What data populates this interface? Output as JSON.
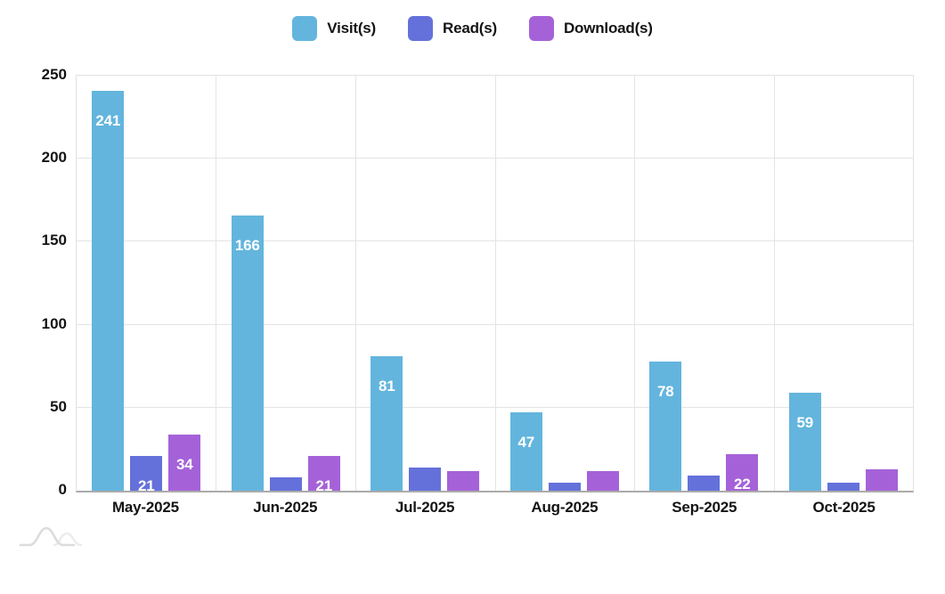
{
  "chart_data": {
    "type": "bar",
    "categories": [
      "May-2025",
      "Jun-2025",
      "Jul-2025",
      "Aug-2025",
      "Sep-2025",
      "Oct-2025"
    ],
    "series": [
      {
        "name": "Visit(s)",
        "color": "#63b5dd",
        "values": [
          241,
          166,
          81,
          47,
          78,
          59
        ]
      },
      {
        "name": "Read(s)",
        "color": "#6571da",
        "values": [
          21,
          8,
          14,
          5,
          9,
          5
        ]
      },
      {
        "name": "Download(s)",
        "color": "#a562d8",
        "values": [
          34,
          21,
          12,
          12,
          22,
          13
        ]
      }
    ],
    "ylim": [
      0,
      250
    ],
    "yticks": [
      0,
      50,
      100,
      150,
      200,
      250
    ],
    "grid": true,
    "legend_position": "top",
    "bar_label_min_value": 20,
    "bar_label_color": "#ffffff"
  },
  "legend": {
    "items": [
      "Visit(s)",
      "Read(s)",
      "Download(s)"
    ]
  },
  "colors": {
    "background": "#ffffff",
    "grid": "#e4e4e4",
    "axis_line": "#ababab",
    "text": "#141414"
  }
}
